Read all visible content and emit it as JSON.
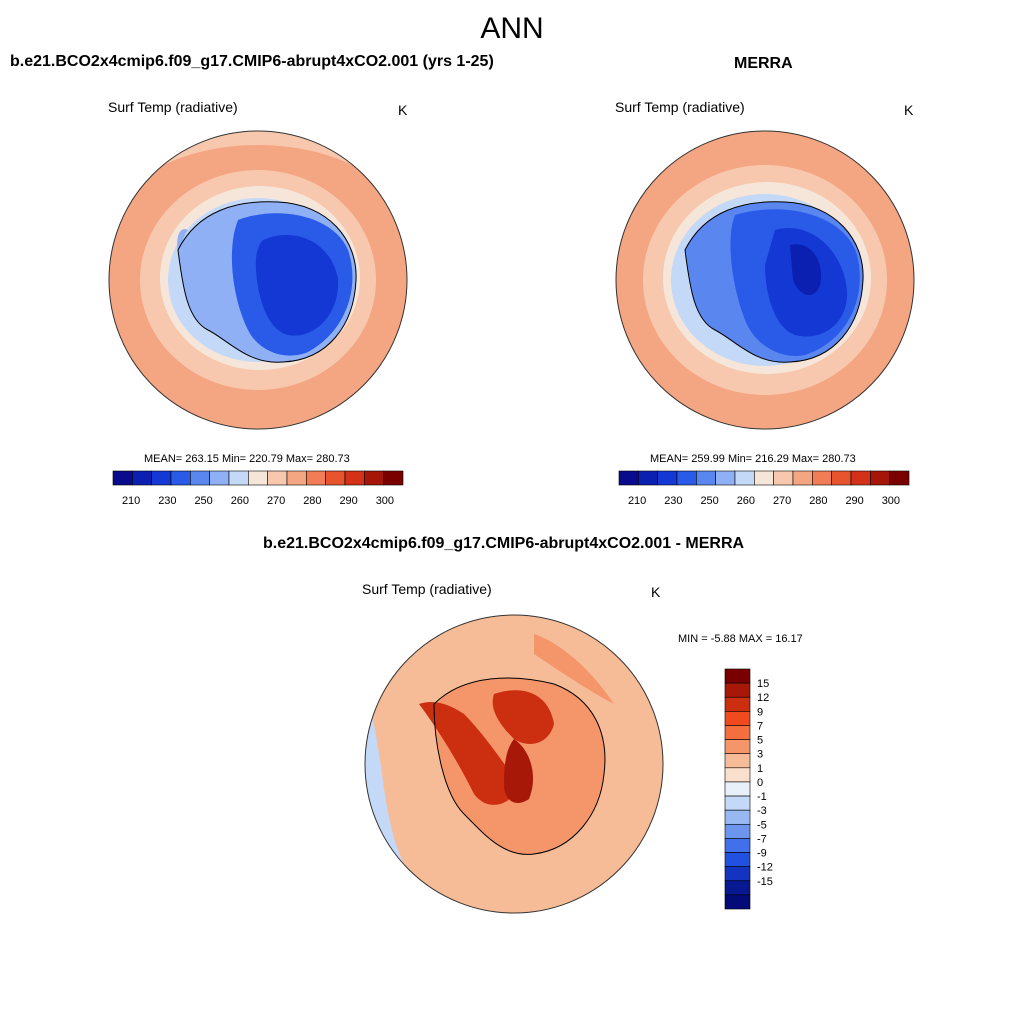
{
  "figure": {
    "title": "ANN"
  },
  "panels": {
    "model": {
      "title": "b.e21.BCO2x4cmip6.f09_g17.CMIP6-abrupt4xCO2.001 (yrs 1-25)",
      "variable": "Surf Temp (radiative)",
      "units": "K",
      "stats": "MEAN= 263.15  Min= 220.79  Max= 280.73"
    },
    "obs": {
      "title": "MERRA",
      "variable": "Surf Temp (radiative)",
      "units": "K",
      "stats": "MEAN= 259.99  Min= 216.29  Max= 280.73"
    },
    "diff": {
      "title": "b.e21.BCO2x4cmip6.f09_g17.CMIP6-abrupt4xCO2.001 - MERRA",
      "variable": "Surf Temp (radiative)",
      "units": "K",
      "stats": "MIN =  -5.88 MAX =  16.17"
    }
  },
  "colorbar_abs": {
    "colors": [
      "#0a0a8c",
      "#0b1fb0",
      "#1438d4",
      "#2a5ae8",
      "#5a86f0",
      "#8fb0f4",
      "#c4d8f7",
      "#f6e6da",
      "#f7c8ae",
      "#f4a582",
      "#f07d56",
      "#e8542e",
      "#d43218",
      "#a61608",
      "#7a0000"
    ],
    "tick_labels": [
      "210",
      "230",
      "250",
      "260",
      "270",
      "280",
      "290",
      "300"
    ]
  },
  "colorbar_diff": {
    "colors": [
      "#7a0000",
      "#a81808",
      "#cc2e10",
      "#f04a1e",
      "#f46e3e",
      "#f4956a",
      "#f6bc98",
      "#fae0cc",
      "#e8f0fa",
      "#c4d8f7",
      "#98b8f2",
      "#6c96ee",
      "#4270ea",
      "#2250e0",
      "#1234c0",
      "#081890",
      "#040a78"
    ],
    "tick_labels": [
      "15",
      "12",
      "9",
      "7",
      "5",
      "3",
      "1",
      "0",
      "-1",
      "-3",
      "-5",
      "-7",
      "-9",
      "-12",
      "-15"
    ]
  },
  "colors": {
    "ocean_warm": "#f4a582",
    "sea_ice": "#c4d8f7",
    "continent": "#1438d4",
    "diff_background": "#f6bc98",
    "diff_peninsula": "#cc2e10"
  }
}
